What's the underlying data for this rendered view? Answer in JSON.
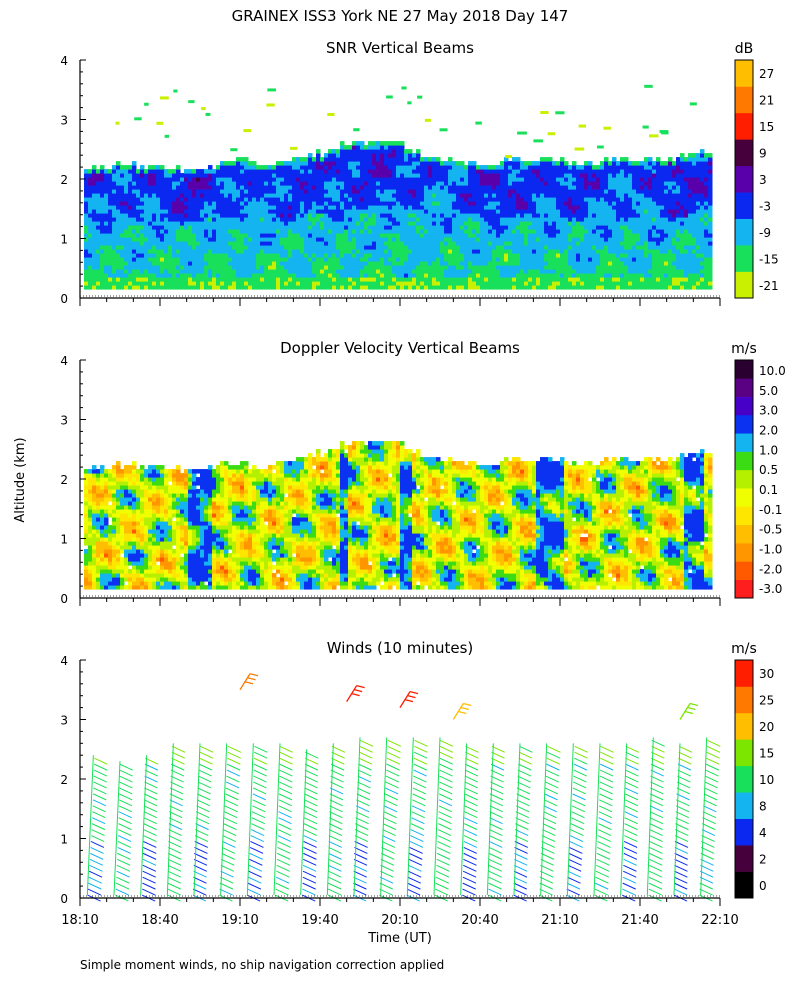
{
  "figure": {
    "title": "GRAINEX ISS3 York NE  27 May 2018 Day 147",
    "ylabel": "Altitude (km)",
    "xlabel": "Time (UT)",
    "footnote": "Simple moment winds, no ship navigation correction applied"
  },
  "colors": {
    "snr": [
      "#c8f000",
      "#19e05a",
      "#14b4f0",
      "#0a28f0",
      "#5a00aa",
      "#46003c",
      "#ff1e00",
      "#ff7800",
      "#ffbe00"
    ],
    "dop": [
      "#ff1e1e",
      "#ff5a00",
      "#ff9600",
      "#ffbe00",
      "#ffe600",
      "#f0ff00",
      "#b4f000",
      "#3cdc14",
      "#14b4f0",
      "#0a32f0",
      "#4600c8",
      "#5a0082",
      "#2a0030"
    ],
    "wind": [
      "#000000",
      "#46003c",
      "#0a28f0",
      "#14b4f0",
      "#19e05a",
      "#7ce600",
      "#ffbe00",
      "#ff7800",
      "#ff1e00"
    ]
  },
  "chart_data": [
    {
      "type": "heatmap",
      "title": "SNR Vertical Beams",
      "xlabel": "",
      "ylabel": "Altitude (km)",
      "ylim": [
        0,
        4
      ],
      "yticks": [
        "0",
        "1",
        "2",
        "3",
        "4"
      ],
      "xlim": [
        "18:10",
        "22:10"
      ],
      "colorbar_unit": "dB",
      "colorbar_labels": [
        "-21",
        "-15",
        "-9",
        "-3",
        "3",
        "9",
        "15",
        "21",
        "27"
      ],
      "colorbar_levels": [
        -21,
        -15,
        -9,
        -3,
        3,
        9,
        15,
        21,
        27
      ],
      "data_top_km": [
        [
          "18:10",
          2.1
        ],
        [
          "18:20",
          2.2
        ],
        [
          "18:30",
          2.2
        ],
        [
          "18:40",
          2.2
        ],
        [
          "18:50",
          2.1
        ],
        [
          "19:00",
          2.2
        ],
        [
          "19:10",
          2.3
        ],
        [
          "19:20",
          2.2
        ],
        [
          "19:30",
          2.3
        ],
        [
          "19:40",
          2.4
        ],
        [
          "19:50",
          2.6
        ],
        [
          "20:00",
          2.6
        ],
        [
          "20:10",
          2.6
        ],
        [
          "20:20",
          2.3
        ],
        [
          "20:30",
          2.3
        ],
        [
          "20:40",
          2.2
        ],
        [
          "20:50",
          2.3
        ],
        [
          "21:00",
          2.3
        ],
        [
          "21:10",
          2.3
        ],
        [
          "21:20",
          2.2
        ],
        [
          "21:30",
          2.3
        ],
        [
          "21:40",
          2.3
        ],
        [
          "21:50",
          2.3
        ],
        [
          "22:00",
          2.4
        ]
      ],
      "data_bottom_km": 0.15
    },
    {
      "type": "heatmap",
      "title": "Doppler Velocity Vertical Beams",
      "xlabel": "",
      "ylabel": "Altitude (km)",
      "ylim": [
        0,
        4
      ],
      "yticks": [
        "0",
        "1",
        "2",
        "3",
        "4"
      ],
      "xlim": [
        "18:10",
        "22:10"
      ],
      "colorbar_unit": "m/s",
      "colorbar_labels": [
        "-3.0",
        "-2.0",
        "-1.0",
        "-0.5",
        "-0.1",
        "0.1",
        "0.5",
        "1.0",
        "2.0",
        "3.0",
        "5.0",
        "10.0"
      ],
      "colorbar_levels": [
        -3.0,
        -2.0,
        -1.0,
        -0.5,
        -0.1,
        0.1,
        0.5,
        1.0,
        2.0,
        3.0,
        5.0,
        10.0
      ],
      "data_top_km": [
        [
          "18:10",
          2.1
        ],
        [
          "18:20",
          2.2
        ],
        [
          "18:30",
          2.2
        ],
        [
          "18:40",
          2.2
        ],
        [
          "18:50",
          2.1
        ],
        [
          "19:00",
          2.2
        ],
        [
          "19:10",
          2.2
        ],
        [
          "19:20",
          2.2
        ],
        [
          "19:30",
          2.3
        ],
        [
          "19:40",
          2.4
        ],
        [
          "19:50",
          2.6
        ],
        [
          "20:00",
          2.6
        ],
        [
          "20:10",
          2.6
        ],
        [
          "20:20",
          2.3
        ],
        [
          "20:30",
          2.3
        ],
        [
          "20:40",
          2.2
        ],
        [
          "20:50",
          2.3
        ],
        [
          "21:00",
          2.3
        ],
        [
          "21:10",
          2.3
        ],
        [
          "21:20",
          2.2
        ],
        [
          "21:30",
          2.3
        ],
        [
          "21:40",
          2.3
        ],
        [
          "21:50",
          2.3
        ],
        [
          "22:00",
          2.4
        ]
      ],
      "data_bottom_km": 0.15
    },
    {
      "type": "scatter",
      "title": "Winds (10 minutes)",
      "xlabel": "Time (UT)",
      "ylabel": "Altitude (km)",
      "ylim": [
        0,
        4
      ],
      "yticks": [
        "0",
        "1",
        "2",
        "3",
        "4"
      ],
      "xticks": [
        "18:10",
        "18:40",
        "19:10",
        "19:40",
        "20:10",
        "20:40",
        "21:10",
        "21:40",
        "22:10"
      ],
      "xlim": [
        "18:10",
        "22:10"
      ],
      "colorbar_unit": "m/s",
      "colorbar_labels": [
        "0",
        "2",
        "4",
        "8",
        "10",
        "15",
        "20",
        "25",
        "30"
      ],
      "colorbar_levels": [
        0,
        2,
        4,
        8,
        10,
        15,
        20,
        25,
        30
      ],
      "profile_times": [
        "18:15",
        "18:25",
        "18:35",
        "18:45",
        "18:55",
        "19:05",
        "19:15",
        "19:25",
        "19:35",
        "19:45",
        "19:55",
        "20:05",
        "20:15",
        "20:25",
        "20:35",
        "20:45",
        "20:55",
        "21:05",
        "21:15",
        "21:25",
        "21:35",
        "21:45",
        "21:55",
        "22:05"
      ],
      "profile_top_km": [
        2.4,
        2.3,
        2.4,
        2.6,
        2.6,
        2.6,
        2.6,
        2.6,
        2.5,
        2.6,
        2.7,
        2.7,
        2.7,
        2.7,
        2.6,
        2.6,
        2.6,
        2.6,
        2.6,
        2.6,
        2.6,
        2.7,
        2.6,
        2.7
      ],
      "typical_speed_ms": 12,
      "upper_gusts": [
        {
          "time": "19:10",
          "alt_km": 3.5,
          "speed_ms": 26
        },
        {
          "time": "19:50",
          "alt_km": 3.3,
          "speed_ms": 31
        },
        {
          "time": "20:10",
          "alt_km": 3.2,
          "speed_ms": 32
        },
        {
          "time": "20:30",
          "alt_km": 3.0,
          "speed_ms": 22
        },
        {
          "time": "21:55",
          "alt_km": 3.0,
          "speed_ms": 18
        }
      ]
    }
  ],
  "xticks": [
    "18:10",
    "18:40",
    "19:10",
    "19:40",
    "20:10",
    "20:40",
    "21:10",
    "21:40",
    "22:10"
  ]
}
